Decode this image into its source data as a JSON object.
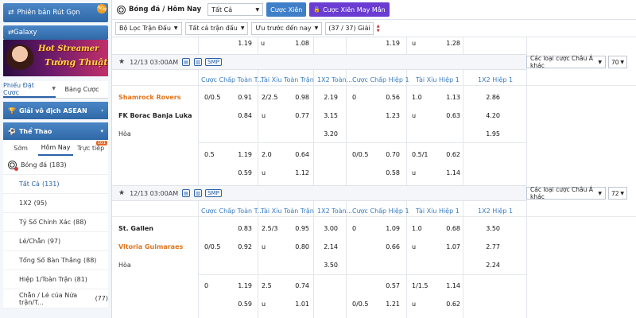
{
  "sidebar": {
    "promo_withdraw": "Phiên bản Rút Gọn",
    "promo_badge": "NEW",
    "promo_galaxy": "Galaxy",
    "banner_line1": "Hot Streamer",
    "banner_line2": "Tường Thuật",
    "tab_betslip": "Phiếu Đặt Cược",
    "tab_odds": "Bảng Cược",
    "asean_title": "Giải vô địch ASEAN",
    "sports_title": "Thể Thao",
    "sport_tabs": [
      "Sớm",
      "Hôm Nay",
      "Trực tiếp"
    ],
    "live_count": "101",
    "football_label": "Bóng đá",
    "football_count": "(183)",
    "items": [
      {
        "label": "Tất Cả",
        "count": "(131)",
        "active": true
      },
      {
        "label": "1X2",
        "count": "(95)"
      },
      {
        "label": "Tỷ Số Chính Xác",
        "count": "(88)"
      },
      {
        "label": "Lẻ/Chẵn",
        "count": "(97)"
      },
      {
        "label": "Tổng Số Bàn Thắng",
        "count": "(88)"
      },
      {
        "label": "Hiệp 1/Toàn Trận",
        "count": "(81)"
      },
      {
        "label": "Chẵn / Lẻ của Nửa trận/T...",
        "count": "(77)"
      }
    ]
  },
  "topbar": {
    "title": "Bóng đá / Hôm Nay",
    "select_value": "Tất Cả",
    "btn_parlay": "Cược Xiên",
    "btn_lucky": "Cược Xiên May Mắn"
  },
  "filterbar": {
    "league_filter": "Bộ Lọc Trận Đấu",
    "all_matches": "Tất cả trận đấu",
    "sort": "Ưu trước đến nay",
    "count": "(37 / 37) Giải"
  },
  "top_partial": {
    "v1": "1.19",
    "u1": "u",
    "v2": "1.08",
    "v3": "1.19",
    "u2": "u",
    "v4": "1.28"
  },
  "columns": [
    "Cược Chấp Toàn T...",
    "Tài Xỉu Toàn Trận",
    "1X2 Toàn...",
    "Cược Chấp Hiệp 1",
    "Tài Xỉu Hiệp 1",
    "1X2 Hiệp 1"
  ],
  "matches": [
    {
      "time": "12/13 03:00AM",
      "smp": "SMP",
      "market": "Các loại cược Châu Á khác",
      "count": "70",
      "home": "Shamrock Rovers",
      "away": "FK Borac Banja Luka",
      "draw": "Hòa",
      "main": {
        "hdp_home": "0/0.5",
        "hdp_home_odds": "0.91",
        "hdp_away_odds": "0.84",
        "ou_line": "2/2.5",
        "ou_over": "0.98",
        "ou_u": "u",
        "ou_under": "0.77",
        "x1": "2.19",
        "x2": "3.15",
        "xd": "3.20",
        "h1_hdp": "0",
        "h1_home": "0.56",
        "h1_away": "1.23",
        "h1_ou_line": "1.0",
        "h1_over": "1.13",
        "h1_u": "u",
        "h1_under": "0.63",
        "h1_x1": "2.86",
        "h1_x2": "4.20",
        "h1_xd": "1.95"
      },
      "alt": {
        "hdp_line": "0.5",
        "hdp_home": "1.19",
        "hdp_away": "0.59",
        "ou_line": "2.0",
        "ou_over": "0.64",
        "ou_u": "u",
        "ou_under": "1.12",
        "h1_hdp": "0/0.5",
        "h1_home": "0.70",
        "h1_away": "0.58",
        "h1_ou_line": "0.5/1",
        "h1_over": "0.62",
        "h1_u": "u",
        "h1_under": "1.14"
      }
    },
    {
      "time": "12/13 03:00AM",
      "smp": "SMP",
      "market": "Các loại cược Châu Á khác",
      "count": "72",
      "home": "St. Gallen",
      "away": "Vitoria Guimaraes",
      "draw": "Hòa",
      "main": {
        "hdp_home_odds": "0.83",
        "hdp_away": "0/0.5",
        "hdp_away_odds": "0.92",
        "ou_line": "2.5/3",
        "ou_over": "0.95",
        "ou_u": "u",
        "ou_under": "0.80",
        "x1": "3.00",
        "x2": "2.14",
        "xd": "3.50",
        "h1_hdp": "0",
        "h1_home": "1.09",
        "h1_away": "0.66",
        "h1_ou_line": "1.0",
        "h1_over": "0.68",
        "h1_u": "u",
        "h1_under": "1.07",
        "h1_x1": "3.50",
        "h1_x2": "2.77",
        "h1_xd": "2.24"
      },
      "alt": {
        "hdp_line": "0",
        "hdp_home": "1.19",
        "hdp_away": "0.59",
        "ou_line": "2.5",
        "ou_over": "0.74",
        "ou_u": "u",
        "ou_under": "1.01",
        "h1_hdp2": "0/0.5",
        "h1_home": "0.57",
        "h1_away": "1.21",
        "h1_ou_line": "1/1.5",
        "h1_over": "1.14",
        "h1_u": "u",
        "h1_under": "0.62"
      }
    }
  ],
  "colors": {
    "accent": "#2f68a6",
    "team_orange": "#e2731a",
    "lucky": "#6a3cd1",
    "header_link": "#3a7cc0"
  }
}
